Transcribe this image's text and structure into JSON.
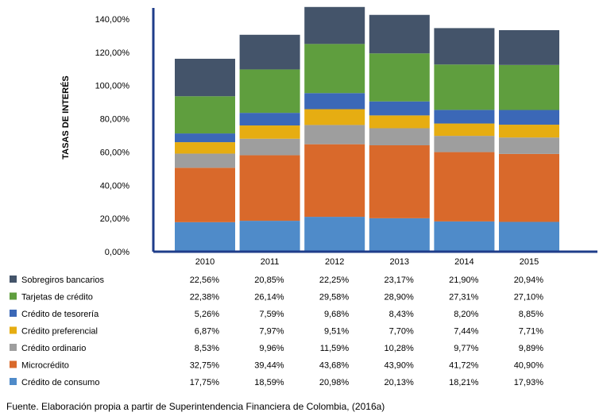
{
  "chart_data": {
    "type": "bar",
    "stacked": true,
    "ylabel": "TASAS DE INTERÉS",
    "ylim": [
      0,
      140
    ],
    "yticks": [
      "0,00%",
      "20,00%",
      "40,00%",
      "60,00%",
      "80,00%",
      "100,00%",
      "120,00%",
      "140,00%"
    ],
    "categories": [
      "2010",
      "2011",
      "2012",
      "2013",
      "2014",
      "2015"
    ],
    "series": [
      {
        "name": "Crédito de consumo",
        "color": "#4f8bc9",
        "values": [
          17.75,
          18.59,
          20.98,
          20.13,
          18.21,
          17.93
        ],
        "labels": [
          "17,75%",
          "18,59%",
          "20,98%",
          "20,13%",
          "18,21%",
          "17,93%"
        ]
      },
      {
        "name": "Microcrédito",
        "color": "#d9692b",
        "values": [
          32.75,
          39.44,
          43.68,
          43.9,
          41.72,
          40.9
        ],
        "labels": [
          "32,75%",
          "39,44%",
          "43,68%",
          "43,90%",
          "41,72%",
          "40,90%"
        ]
      },
      {
        "name": "Crédito ordinario",
        "color": "#9e9e9e",
        "values": [
          8.53,
          9.96,
          11.59,
          10.28,
          9.77,
          9.89
        ],
        "labels": [
          "8,53%",
          "9,96%",
          "11,59%",
          "10,28%",
          "9,77%",
          "9,89%"
        ]
      },
      {
        "name": "Crédito preferencial",
        "color": "#e6ad12",
        "values": [
          6.87,
          7.97,
          9.51,
          7.7,
          7.44,
          7.71
        ],
        "labels": [
          "6,87%",
          "7,97%",
          "9,51%",
          "7,70%",
          "7,44%",
          "7,71%"
        ]
      },
      {
        "name": "Crédito de tesorería",
        "color": "#3b68b7",
        "values": [
          5.26,
          7.59,
          9.68,
          8.43,
          8.2,
          8.85
        ],
        "labels": [
          "5,26%",
          "7,59%",
          "9,68%",
          "8,43%",
          "8,20%",
          "8,85%"
        ]
      },
      {
        "name": "Tarjetas de crédito",
        "color": "#5f9e3e",
        "values": [
          22.38,
          26.14,
          29.58,
          28.9,
          27.31,
          27.1
        ],
        "labels": [
          "22,38%",
          "26,14%",
          "29,58%",
          "28,90%",
          "27,31%",
          "27,10%"
        ]
      },
      {
        "name": "Sobregiros bancarios",
        "color": "#44546a",
        "values": [
          22.56,
          20.85,
          22.25,
          23.17,
          21.9,
          20.94
        ],
        "labels": [
          "22,56%",
          "20,85%",
          "22,25%",
          "23,17%",
          "21,90%",
          "20,94%"
        ]
      }
    ],
    "table_row_order": [
      "Sobregiros bancarios",
      "Tarjetas de crédito",
      "Crédito de tesorería",
      "Crédito preferencial",
      "Crédito ordinario",
      "Microcrédito",
      "Crédito de consumo"
    ]
  },
  "source_note": "Fuente. Elaboración propia a partir de Superintendencia Financiera de Colombia, (2016a)"
}
